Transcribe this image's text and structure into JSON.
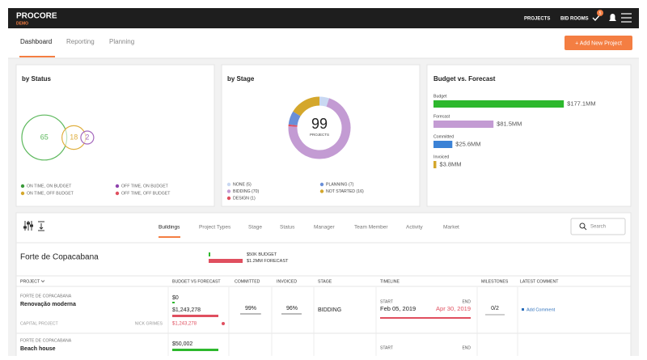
{
  "nav": {
    "logo": "PROCORE",
    "logo_sub": "DEMO",
    "links": [
      "PROJECTS",
      "BID ROOMS"
    ],
    "badge": "5"
  },
  "tabs": [
    "Dashboard",
    "Reporting",
    "Planning"
  ],
  "add_button": "+ Add New Project",
  "by_status": {
    "title": "by Status",
    "bubbles": [
      {
        "value": 65,
        "color": "#5cb85c"
      },
      {
        "value": 18,
        "color": "#e0b040"
      },
      {
        "value": 2,
        "color": "#a569bd"
      }
    ],
    "legend": [
      {
        "label": "ON TIME, ON BUDGET",
        "color": "#3a9a3a"
      },
      {
        "label": "OFF TIME, ON BUDGET",
        "color": "#8e44ad"
      },
      {
        "label": "ON TIME, OFF BUDGET",
        "color": "#d4a72c"
      },
      {
        "label": "OFF TIME, OFF BUDGET",
        "color": "#e04f5f"
      }
    ]
  },
  "by_stage": {
    "title": "by Stage",
    "total": 99,
    "total_label": "PROJECTS",
    "segments": [
      {
        "label": "NONE (5)",
        "value": 5,
        "color": "#c9d8f2"
      },
      {
        "label": "BIDDING (70)",
        "value": 70,
        "color": "#c39bd3"
      },
      {
        "label": "DESIGN (1)",
        "value": 1,
        "color": "#e04f5f"
      },
      {
        "label": "PLANNING (7)",
        "value": 7,
        "color": "#6a8fd8"
      },
      {
        "label": "NOT STARTED (16)",
        "value": 16,
        "color": "#d4a72c"
      }
    ]
  },
  "budget": {
    "title": "Budget vs. Forecast",
    "bars": [
      {
        "name": "Budget",
        "value": 177.1,
        "label": "$177.1MM",
        "color": "#2db82d"
      },
      {
        "name": "Forecast",
        "value": 81.5,
        "label": "$81.5MM",
        "color": "#c39bd3"
      },
      {
        "name": "Committed",
        "value": 25.6,
        "label": "$25.6MM",
        "color": "#3b82d6"
      },
      {
        "name": "Invoiced",
        "value": 3.8,
        "label": "$3.8MM",
        "color": "#d4a72c"
      }
    ]
  },
  "filters": {
    "tabs": [
      "Buildings",
      "Project Types",
      "Stage",
      "Status",
      "Manager",
      "Team Member",
      "Activity",
      "Market"
    ],
    "search": "Search"
  },
  "project": {
    "name": "Forte de Copacabana",
    "budget_label": "$50K BUDGET",
    "forecast_label": "$1.2MM FORECAST"
  },
  "table": {
    "headers": [
      "PROJECT",
      "BUDGET VS FORECAST",
      "COMMITTED",
      "INVOICED",
      "STAGE",
      "TIMELINE",
      "MILESTONES",
      "LATEST COMMENT"
    ],
    "rows": [
      {
        "group": "FORTE DE COPACABANA",
        "name": "Renovação moderna",
        "type": "CAPITAL PROJECT",
        "manager": "NICK GRIMES",
        "budget": "$0",
        "forecast": "$1,243,278",
        "variance": "$1,243,278",
        "committed": {
          "value": 99,
          "label": "99%"
        },
        "invoiced": {
          "value": 96,
          "label": "96%"
        },
        "stage": "BIDDING",
        "start_label": "START",
        "end_label": "END",
        "start": "Feb 05, 2019",
        "end": "Apr 30, 2019",
        "milestones": "0/2",
        "comment": "Add Comment"
      },
      {
        "group": "FORTE DE COPACABANA",
        "name": "Beach house",
        "budget": "$50,002",
        "start_label": "START",
        "end_label": "END"
      }
    ]
  }
}
